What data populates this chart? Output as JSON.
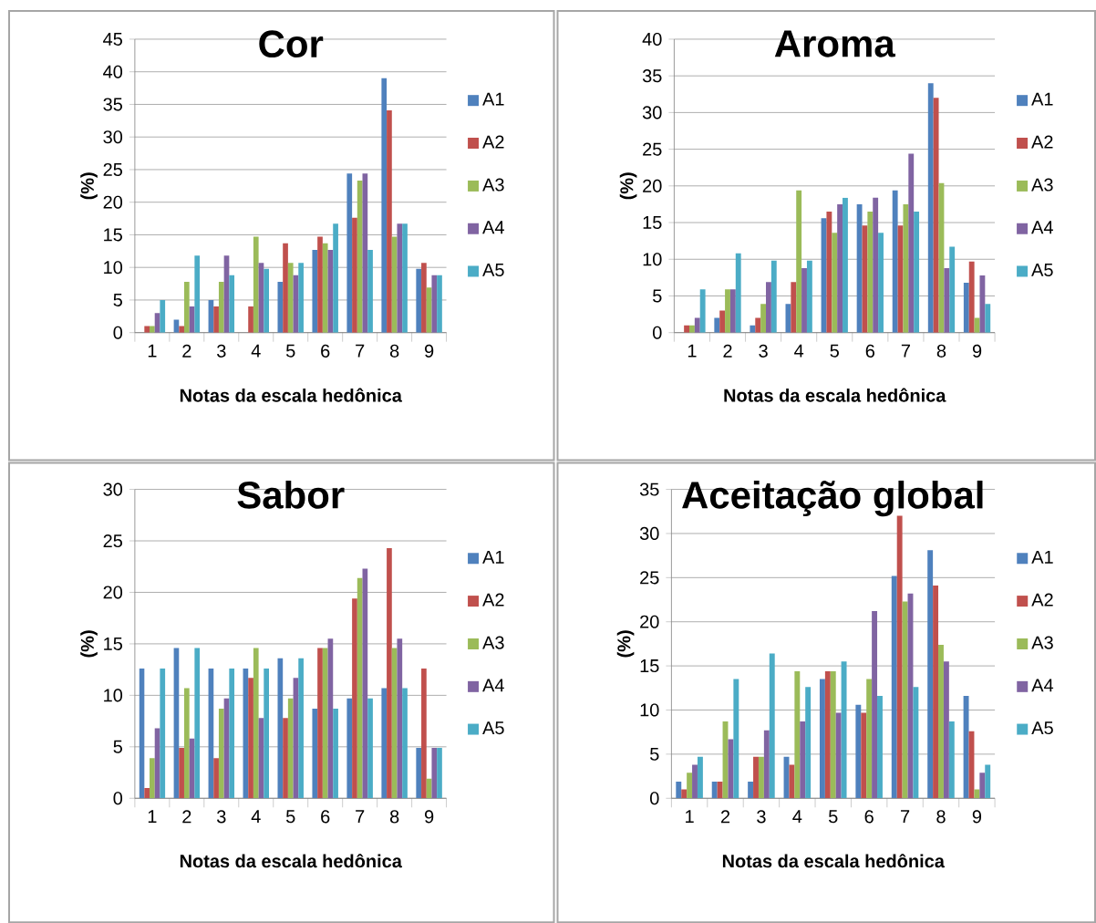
{
  "chart_data": [
    {
      "type": "bar",
      "title": "Cor",
      "xlabel": "Notas da escala hedônica",
      "ylabel": "(%)",
      "categories": [
        "1",
        "2",
        "3",
        "4",
        "5",
        "6",
        "7",
        "8",
        "9"
      ],
      "ylim": [
        0,
        45
      ],
      "yticks": [
        0,
        5,
        10,
        15,
        20,
        25,
        30,
        35,
        40,
        45
      ],
      "grid": "y",
      "legend": "right",
      "series": [
        {
          "name": "A1",
          "color": "#4f81bd",
          "values": [
            0,
            2,
            5,
            0,
            7.8,
            12.7,
            24.4,
            39,
            9.8
          ]
        },
        {
          "name": "A2",
          "color": "#c0504d",
          "values": [
            1,
            1,
            4,
            4,
            13.7,
            14.7,
            17.6,
            34.1,
            10.7
          ]
        },
        {
          "name": "A3",
          "color": "#9bbb59",
          "values": [
            1,
            7.8,
            7.8,
            14.7,
            10.7,
            13.7,
            23.3,
            14.7,
            6.9
          ]
        },
        {
          "name": "A4",
          "color": "#8064a2",
          "values": [
            3,
            4,
            11.8,
            10.7,
            8.8,
            12.7,
            24.4,
            16.7,
            8.8
          ]
        },
        {
          "name": "A5",
          "color": "#4bacc6",
          "values": [
            5,
            11.8,
            8.8,
            9.8,
            10.7,
            16.7,
            12.7,
            16.7,
            8.8
          ]
        }
      ]
    },
    {
      "type": "bar",
      "title": "Aroma",
      "xlabel": "Notas da escala hedônica",
      "ylabel": "(%)",
      "categories": [
        "1",
        "2",
        "3",
        "4",
        "5",
        "6",
        "7",
        "8",
        "9"
      ],
      "ylim": [
        0,
        40
      ],
      "yticks": [
        0,
        5,
        10,
        15,
        20,
        25,
        30,
        35,
        40
      ],
      "grid": "y",
      "legend": "right",
      "series": [
        {
          "name": "A1",
          "color": "#4f81bd",
          "values": [
            0,
            2,
            1,
            3.9,
            15.6,
            17.5,
            19.4,
            34,
            6.8
          ]
        },
        {
          "name": "A2",
          "color": "#c0504d",
          "values": [
            1,
            3,
            2,
            6.9,
            16.5,
            14.6,
            14.6,
            32,
            9.7
          ]
        },
        {
          "name": "A3",
          "color": "#9bbb59",
          "values": [
            1,
            5.9,
            3.9,
            19.4,
            13.6,
            16.5,
            17.5,
            20.4,
            2
          ]
        },
        {
          "name": "A4",
          "color": "#8064a2",
          "values": [
            2,
            5.9,
            6.9,
            8.8,
            17.5,
            18.4,
            24.4,
            8.8,
            7.8
          ]
        },
        {
          "name": "A5",
          "color": "#4bacc6",
          "values": [
            5.9,
            10.8,
            9.8,
            9.8,
            18.4,
            13.6,
            16.5,
            11.7,
            3.9
          ]
        }
      ]
    },
    {
      "type": "bar",
      "title": "Sabor",
      "xlabel": "Notas da escala hedônica",
      "ylabel": "(%)",
      "categories": [
        "1",
        "2",
        "3",
        "4",
        "5",
        "6",
        "7",
        "8",
        "9"
      ],
      "ylim": [
        0,
        30
      ],
      "yticks": [
        0,
        5,
        10,
        15,
        20,
        25,
        30
      ],
      "grid": "y",
      "legend": "right",
      "series": [
        {
          "name": "A1",
          "color": "#4f81bd",
          "values": [
            12.6,
            14.6,
            12.6,
            12.6,
            13.6,
            8.7,
            9.7,
            10.7,
            4.9
          ]
        },
        {
          "name": "A2",
          "color": "#c0504d",
          "values": [
            1,
            4.9,
            3.9,
            11.7,
            7.8,
            14.6,
            19.4,
            24.3,
            12.6
          ]
        },
        {
          "name": "A3",
          "color": "#9bbb59",
          "values": [
            3.9,
            10.7,
            8.7,
            14.6,
            9.7,
            14.6,
            21.4,
            14.6,
            1.9
          ]
        },
        {
          "name": "A4",
          "color": "#8064a2",
          "values": [
            6.8,
            5.8,
            9.7,
            7.8,
            11.7,
            15.5,
            22.3,
            15.5,
            4.9
          ]
        },
        {
          "name": "A5",
          "color": "#4bacc6",
          "values": [
            12.6,
            14.6,
            12.6,
            12.6,
            13.6,
            8.7,
            9.7,
            10.7,
            4.9
          ]
        }
      ]
    },
    {
      "type": "bar",
      "title": "Aceitação global",
      "xlabel": "Notas da escala hedônica",
      "ylabel": "(%)",
      "categories": [
        "1",
        "2",
        "3",
        "4",
        "5",
        "6",
        "7",
        "8",
        "9"
      ],
      "ylim": [
        0,
        35
      ],
      "yticks": [
        0,
        5,
        10,
        15,
        20,
        25,
        30,
        35
      ],
      "grid": "y",
      "legend": "right",
      "series": [
        {
          "name": "A1",
          "color": "#4f81bd",
          "values": [
            1.9,
            1.9,
            1.9,
            4.7,
            13.5,
            10.6,
            25.2,
            28.1,
            11.6
          ]
        },
        {
          "name": "A2",
          "color": "#c0504d",
          "values": [
            1,
            1.9,
            4.7,
            3.8,
            14.4,
            9.7,
            32,
            24.1,
            7.6
          ]
        },
        {
          "name": "A3",
          "color": "#9bbb59",
          "values": [
            2.9,
            8.7,
            4.7,
            14.4,
            14.4,
            13.5,
            22.3,
            17.4,
            1
          ]
        },
        {
          "name": "A4",
          "color": "#8064a2",
          "values": [
            3.8,
            6.7,
            7.7,
            8.7,
            9.7,
            21.2,
            23.2,
            15.5,
            2.9
          ]
        },
        {
          "name": "A5",
          "color": "#4bacc6",
          "values": [
            4.7,
            13.5,
            16.4,
            12.6,
            15.5,
            11.6,
            12.6,
            8.7,
            3.8
          ]
        }
      ]
    }
  ]
}
